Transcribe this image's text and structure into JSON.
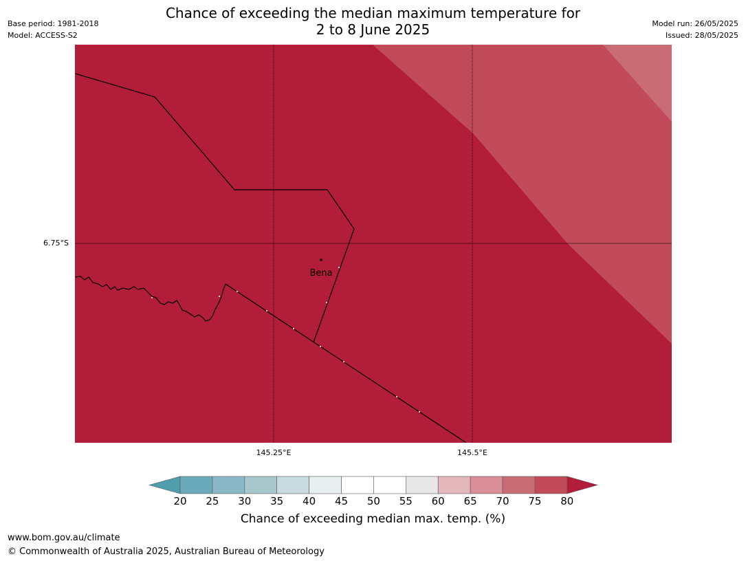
{
  "title_line1": "Chance of exceeding the median maximum temperature for",
  "title_line2": "2 to 8 June 2025",
  "base_period": "Base period: 1981-2018",
  "model": "Model: ACCESS-S2",
  "model_run": "Model run: 26/05/2025",
  "issued": "Issued: 28/05/2025",
  "map": {
    "lat_label": "6.75°S",
    "lon_labels": [
      "145.25°E",
      "145.5°E"
    ],
    "place": "Bena",
    "fill_colors": {
      "80+": "#b21e3a",
      "75-80": "#c14b58",
      "70-75": "#ca6c76"
    }
  },
  "colorbar": {
    "ticks": [
      "20",
      "25",
      "30",
      "35",
      "40",
      "45",
      "50",
      "55",
      "60",
      "65",
      "70",
      "75",
      "80"
    ],
    "colors": [
      "#4f9eae",
      "#6aaaba",
      "#8ab8c6",
      "#a8c7cd",
      "#cadbdf",
      "#e8eff1",
      "#ffffff",
      "#ffffff",
      "#e8e8e8",
      "#e3b8bd",
      "#d98e98",
      "#ca6c76",
      "#c14b58",
      "#b21e3a"
    ],
    "label": "Chance of exceeding median max. temp. (%)"
  },
  "footer": {
    "url": "www.bom.gov.au/climate",
    "copyright": "© Commonwealth of Australia 2025, Australian Bureau of Meteorology"
  }
}
